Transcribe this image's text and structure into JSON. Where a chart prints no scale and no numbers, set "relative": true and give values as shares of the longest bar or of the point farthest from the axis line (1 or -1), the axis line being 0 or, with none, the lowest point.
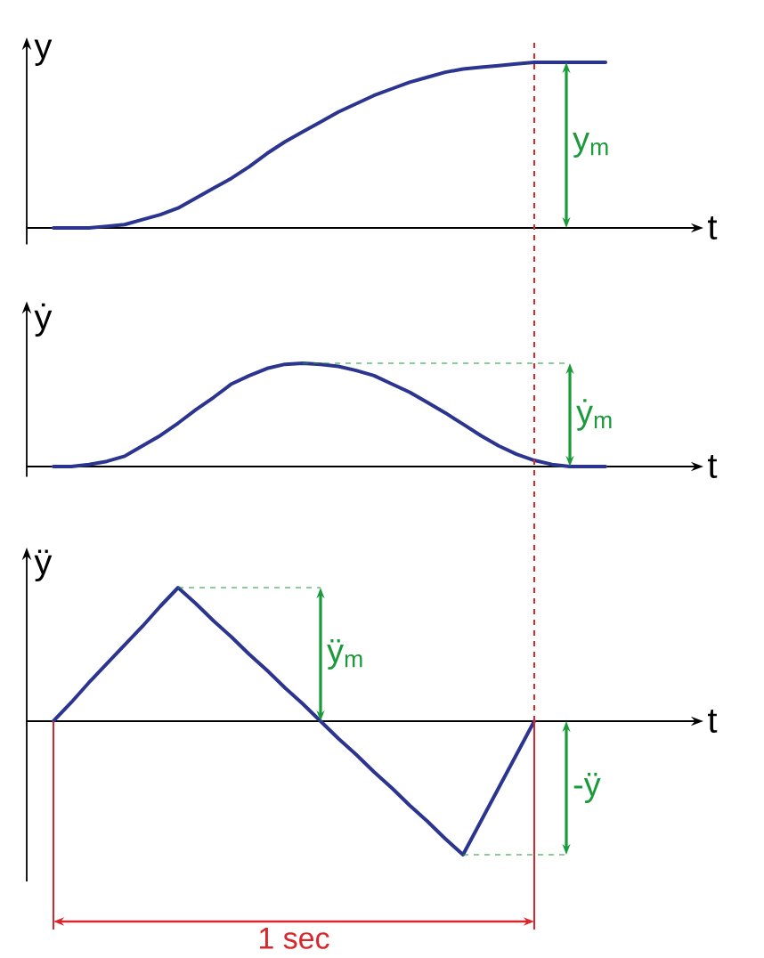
{
  "chart_data": [
    {
      "type": "line",
      "relative": true,
      "ylabel": "y",
      "xlabel": "t",
      "categories": [
        null,
        null,
        null,
        null,
        null,
        null,
        null,
        null,
        null,
        null,
        null,
        null,
        null,
        null,
        null,
        null,
        null,
        null,
        null,
        null,
        null,
        null,
        null,
        null,
        null,
        null,
        null,
        null,
        null,
        null,
        null,
        null,
        null
      ],
      "series": [
        {
          "color": "#2b3590",
          "values": [
            0,
            0,
            0,
            0.01,
            0.02,
            0.05,
            0.08,
            0.12,
            0.18,
            0.24,
            0.3,
            0.37,
            0.45,
            0.52,
            0.58,
            0.64,
            0.7,
            0.75,
            0.8,
            0.84,
            0.88,
            0.91,
            0.94,
            0.96,
            0.97,
            0.98,
            0.99,
            1,
            1,
            1,
            1,
            1,
            null
          ]
        }
      ],
      "annotations": [
        "y$_{m}$"
      ]
    },
    {
      "type": "line",
      "relative": true,
      "ylabel": "ẏ",
      "xlabel": "t",
      "categories": [
        null,
        null,
        null,
        null,
        null,
        null,
        null,
        null,
        null,
        null,
        null,
        null,
        null,
        null,
        null,
        null,
        null,
        null,
        null,
        null,
        null,
        null,
        null,
        null,
        null,
        null,
        null,
        null,
        null,
        null,
        null,
        null,
        null
      ],
      "series": [
        {
          "color": "#2b3590",
          "values": [
            0,
            0,
            0.02,
            0.05,
            0.1,
            0.2,
            0.3,
            0.42,
            0.55,
            0.67,
            0.8,
            0.88,
            0.95,
            0.99,
            1,
            0.99,
            0.97,
            0.93,
            0.88,
            0.8,
            0.72,
            0.62,
            0.52,
            0.41,
            0.3,
            0.2,
            0.12,
            0.06,
            0.02,
            0,
            0,
            0,
            null
          ]
        }
      ],
      "annotations": [
        "ẏ$_{m}$"
      ]
    },
    {
      "type": "line",
      "relative": true,
      "ylabel": "ÿ",
      "xlabel": "t",
      "categories": [
        null,
        null,
        null,
        null,
        null,
        null,
        null,
        null,
        null,
        null,
        null,
        null,
        null,
        null,
        null,
        null,
        null,
        null,
        null,
        null,
        null,
        null,
        null,
        null,
        null,
        null,
        null,
        null,
        null,
        null,
        null,
        null,
        null
      ],
      "series": [
        {
          "color": "#2b3590",
          "values": [
            0,
            0.14,
            0.29,
            0.43,
            0.57,
            0.71,
            0.86,
            1,
            0.88,
            0.75,
            0.63,
            0.5,
            0.38,
            0.25,
            0.13,
            0,
            -0.13,
            -0.25,
            -0.38,
            -0.5,
            -0.63,
            -0.75,
            -0.88,
            -1,
            -0.75,
            -0.5,
            -0.25,
            0,
            null,
            null,
            null,
            null,
            null
          ]
        }
      ],
      "annotations": [
        "ÿ$_{m}$",
        "-ÿ",
        "1 sec"
      ]
    }
  ]
}
